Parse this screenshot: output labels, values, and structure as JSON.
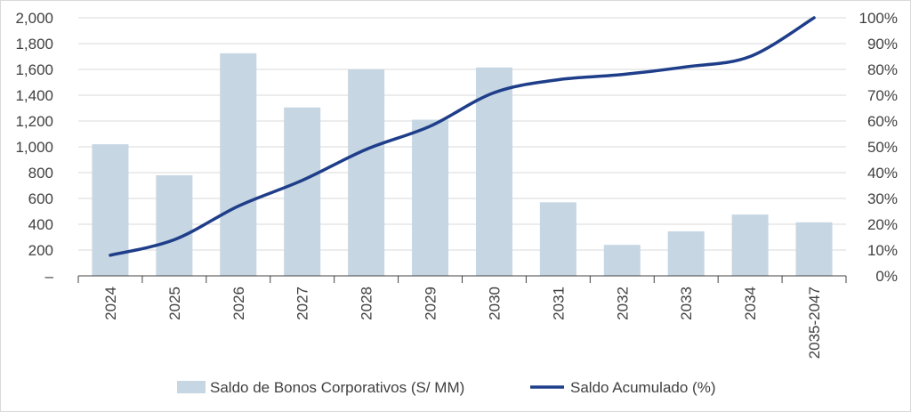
{
  "chart_data": {
    "type": "bar+line",
    "title": "",
    "xlabel": "",
    "categories": [
      "2024",
      "2025",
      "2026",
      "2027",
      "2028",
      "2029",
      "2030",
      "2031",
      "2032",
      "2033",
      "2034",
      "2035-2047"
    ],
    "series": [
      {
        "name": "Saldo de Bonos Corporativos (S/ MM)",
        "type": "bar",
        "axis": "left",
        "color": "#c6d6e3",
        "values": [
          1020,
          780,
          1725,
          1305,
          1600,
          1210,
          1615,
          570,
          240,
          345,
          475,
          415
        ]
      },
      {
        "name": "Saldo Acumulado (%)",
        "type": "line",
        "axis": "right",
        "color": "#1f3e8a",
        "values": [
          8,
          14,
          27,
          37,
          49,
          58,
          71,
          76,
          78,
          81,
          85,
          100
        ]
      }
    ],
    "y_left": {
      "ylim": [
        0,
        2000
      ],
      "ticks": [
        0,
        200,
        400,
        600,
        800,
        1000,
        1200,
        1400,
        1600,
        1800,
        2000
      ],
      "tick_labels": [
        "–",
        "200",
        "400",
        "600",
        "800",
        "1,000",
        "1,200",
        "1,400",
        "1,600",
        "1,800",
        "2,000"
      ]
    },
    "y_right": {
      "ylim": [
        0,
        100
      ],
      "ticks": [
        0,
        10,
        20,
        30,
        40,
        50,
        60,
        70,
        80,
        90,
        100
      ],
      "tick_labels": [
        "0%",
        "10%",
        "20%",
        "30%",
        "40%",
        "50%",
        "60%",
        "70%",
        "80%",
        "90%",
        "100%"
      ]
    },
    "grid": true,
    "legend_position": "bottom"
  }
}
